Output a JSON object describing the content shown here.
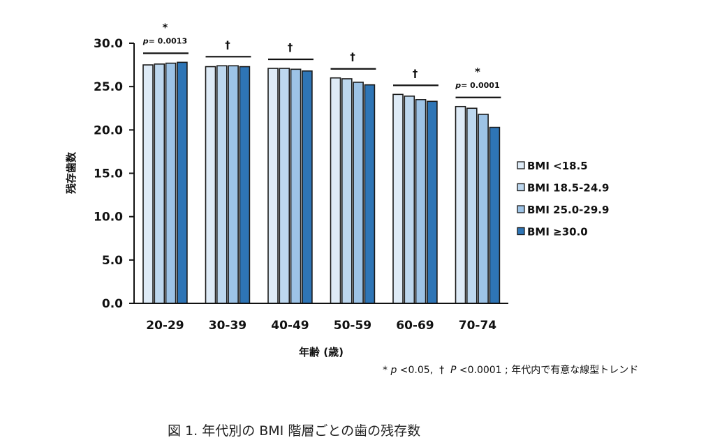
{
  "chart_data": {
    "type": "bar",
    "title": "",
    "xlabel": "年齢 (歳)",
    "ylabel": "残存歯数",
    "ylim": [
      0,
      30
    ],
    "yticks": [
      "0.0",
      "5.0",
      "10.0",
      "15.0",
      "20.0",
      "25.0",
      "30.0"
    ],
    "grid": false,
    "legend_position": "right",
    "categories": [
      "20-29",
      "30-39",
      "40-49",
      "50-59",
      "60-69",
      "70-74"
    ],
    "series": [
      {
        "name": "BMI <18.5",
        "color": "#DEEBF7",
        "values": [
          27.5,
          27.3,
          27.1,
          26.0,
          24.1,
          22.7
        ]
      },
      {
        "name": "BMI 18.5-24.9",
        "color": "#BDD7EE",
        "values": [
          27.6,
          27.4,
          27.1,
          25.9,
          23.9,
          22.5
        ]
      },
      {
        "name": "BMI 25.0-29.9",
        "color": "#9DC3E6",
        "values": [
          27.7,
          27.4,
          27.0,
          25.5,
          23.5,
          21.8
        ]
      },
      {
        "name": "BMI ≥30.0",
        "color": "#2E75B6",
        "values": [
          27.8,
          27.3,
          26.8,
          25.2,
          23.3,
          20.3
        ]
      }
    ],
    "annotations": [
      {
        "category": "20-29",
        "symbol": "*",
        "p_text": "p= 0.0013"
      },
      {
        "category": "30-39",
        "symbol": "†",
        "p_text": ""
      },
      {
        "category": "40-49",
        "symbol": "†",
        "p_text": ""
      },
      {
        "category": "50-59",
        "symbol": "†",
        "p_text": ""
      },
      {
        "category": "60-69",
        "symbol": "†",
        "p_text": ""
      },
      {
        "category": "70-74",
        "symbol": "*",
        "p_text": "p= 0.0001"
      }
    ]
  },
  "footnote": {
    "star": "*",
    "p1_label": "p",
    "p1_value": "<0.05,",
    "dagger": "†",
    "p2_label": "P",
    "p2_value": "<0.0001 ; 年代内で有意な線型トレンド"
  },
  "caption": "図 1.  年代別の BMI 階層ごとの歯の残存数"
}
